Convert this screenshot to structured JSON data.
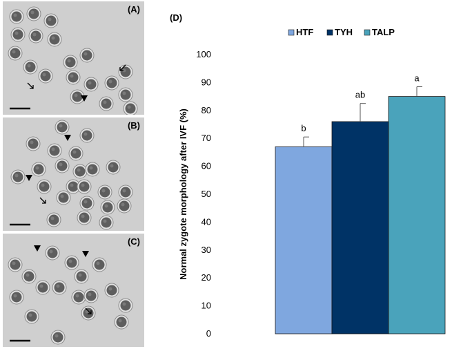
{
  "panels": [
    {
      "label": "(A)"
    },
    {
      "label": "(B)"
    },
    {
      "label": "(C)"
    }
  ],
  "chart_label": "(D)",
  "chart_data": {
    "type": "bar",
    "title": "",
    "xlabel": "",
    "ylabel": "Normal zygote morphology after IVF (%)",
    "ylim": [
      0,
      100
    ],
    "yticks": [
      0,
      10,
      20,
      30,
      40,
      50,
      60,
      70,
      80,
      90,
      100
    ],
    "legend_position": "top",
    "grid": false,
    "series": [
      {
        "name": "HTF",
        "value": 67,
        "error": 3.5,
        "significance": "b",
        "color": "#7fa7df"
      },
      {
        "name": "TYH",
        "value": 76,
        "error": 6.5,
        "significance": "ab",
        "color": "#003366"
      },
      {
        "name": "TALP",
        "value": 85,
        "error": 3.5,
        "significance": "a",
        "color": "#4aa3bb"
      }
    ]
  }
}
